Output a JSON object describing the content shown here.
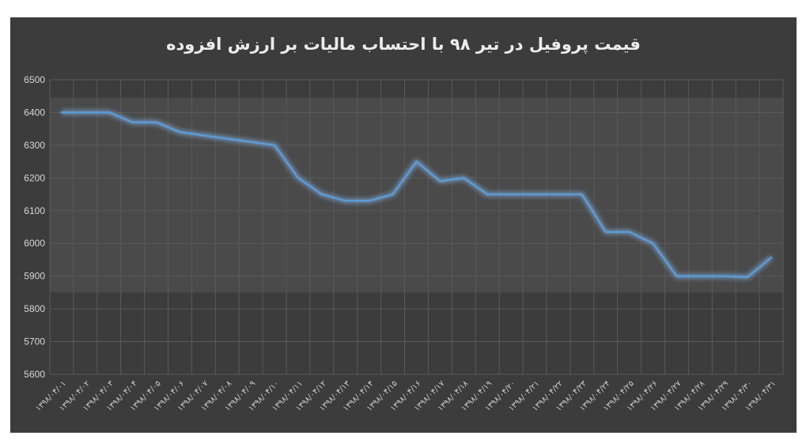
{
  "chart_data": {
    "type": "line",
    "title": "قیمت پروفیل در تیر ۹۸ با احتساب مالیات بر ارزش افزوده",
    "xlabel": "",
    "ylabel": "",
    "ylim": [
      5600,
      6500
    ],
    "ytick_step": 100,
    "grid": true,
    "categories": [
      "۱۳۹۸/۰۴/۰۱",
      "۱۳۹۸/۰۴/۰۲",
      "۱۳۹۸/۰۴/۰۳",
      "۱۳۹۸/۰۴/۰۴",
      "۱۳۹۸/۰۴/۰۵",
      "۱۳۹۸/۰۴/۰۶",
      "۱۳۹۸/۰۴/۰۷",
      "۱۳۹۸/۰۴/۰۸",
      "۱۳۹۸/۰۴/۰۹",
      "۱۳۹۸/۰۴/۱۰",
      "۱۳۹۸/۰۴/۱۱",
      "۱۳۹۸/۰۴/۱۲",
      "۱۳۹۸/۰۴/۱۳",
      "۱۳۹۸/۰۴/۱۴",
      "۱۳۹۸/۰۴/۱۵",
      "۱۳۹۸/۰۴/۱۶",
      "۱۳۹۸/۰۴/۱۷",
      "۱۳۹۸/۰۴/۱۸",
      "۱۳۹۸/۰۴/۱۹",
      "۱۳۹۸/۰۴/۲۰",
      "۱۳۹۸/۰۴/۲۱",
      "۱۳۹۸/۰۴/۲۲",
      "۱۳۹۸/۰۴/۲۳",
      "۱۳۹۸/۰۴/۲۴",
      "۱۳۹۸/۰۴/۲۵",
      "۱۳۹۸/۰۴/۲۶",
      "۱۳۹۸/۰۴/۲۷",
      "۱۳۹۸/۰۴/۲۸",
      "۱۳۹۸/۰۴/۲۹",
      "۱۳۹۸/۰۴/۳۰",
      "۱۳۹۸/۰۴/۳۱"
    ],
    "values": [
      6400,
      6400,
      6400,
      6370,
      6370,
      6340,
      6330,
      6320,
      6310,
      6300,
      6200,
      6150,
      6130,
      6130,
      6150,
      6250,
      6190,
      6200,
      6150,
      6150,
      6150,
      6150,
      6150,
      6035,
      6035,
      6000,
      5900,
      5900,
      5900,
      5897,
      5957
    ],
    "colors": {
      "line": "#5b9bd5",
      "glow": "#8fc3ff",
      "grid": "#5a5a5a",
      "band": "#4a4a4a"
    }
  }
}
